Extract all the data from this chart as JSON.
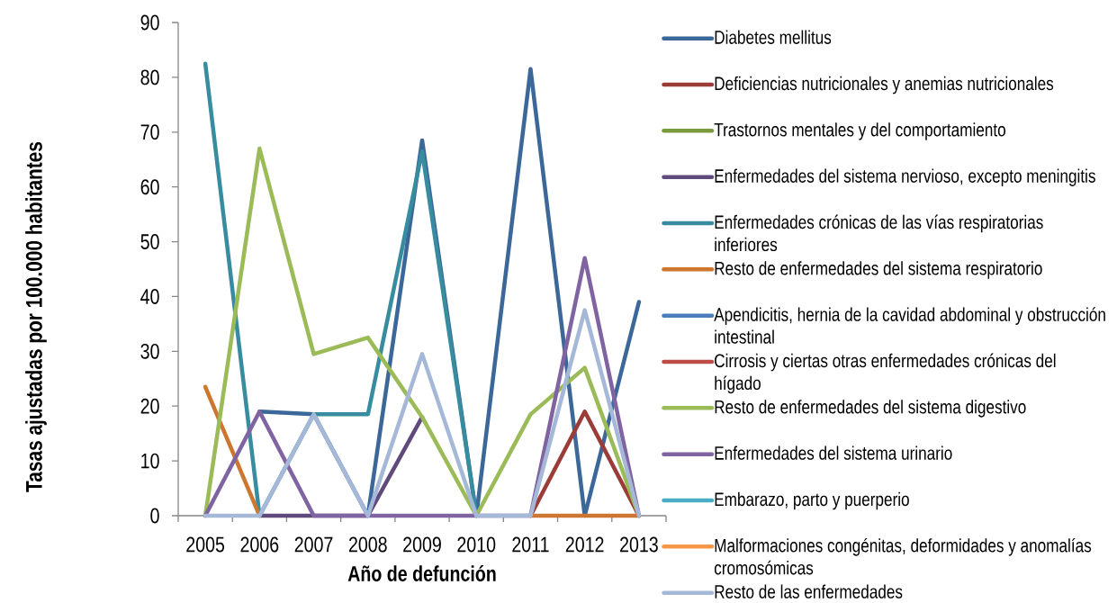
{
  "chart_data": {
    "type": "line",
    "xlabel": "Año de defunción",
    "ylabel": "Tasas ajustadas por 100.000 habitantes",
    "categories": [
      "2005",
      "2006",
      "2007",
      "2008",
      "2009",
      "2010",
      "2011",
      "2012",
      "2013"
    ],
    "ylim": [
      0,
      90
    ],
    "yticks": [
      0,
      10,
      20,
      30,
      40,
      50,
      60,
      70,
      80,
      90
    ],
    "legend": "right",
    "series": [
      {
        "name": "Diabetes mellitus",
        "color": "#3c6799",
        "values": [
          null,
          19,
          18.5,
          0,
          68.5,
          0,
          81.5,
          0,
          39
        ]
      },
      {
        "name": "Deficiencias nutricionales y anemias nutricionales",
        "color": "#9b3c39",
        "values": [
          null,
          null,
          null,
          null,
          null,
          null,
          0,
          19,
          0
        ]
      },
      {
        "name": "Trastornos mentales y del comportamiento",
        "color": "#7b9a3d",
        "values": [
          null,
          null,
          null,
          null,
          null,
          null,
          null,
          null,
          null
        ]
      },
      {
        "name": "Enfermedades del sistema nervioso, excepto meningitis",
        "color": "#604a7b",
        "values": [
          null,
          0,
          0,
          0,
          18,
          null,
          null,
          null,
          null
        ]
      },
      {
        "name": "Enfermedades crónicas de las vías respiratorias inferiores",
        "color": "#378ca0",
        "values": [
          82.5,
          0,
          18.5,
          18.5,
          66.5,
          0,
          null,
          null,
          null
        ]
      },
      {
        "name": "Resto de enfermedades del sistema respiratorio",
        "color": "#cc7630",
        "values": [
          23.5,
          0,
          null,
          null,
          null,
          null,
          0,
          0,
          0
        ]
      },
      {
        "name": "Apendicitis, hernia de la cavidad abdominal y obstrucción intestinal",
        "color": "#4a7ebb",
        "values": [
          null,
          null,
          null,
          null,
          null,
          null,
          null,
          null,
          null
        ]
      },
      {
        "name": "Cirrosis y ciertas otras enfermedades crónicas del hígado",
        "color": "#be4b48",
        "values": [
          null,
          null,
          null,
          null,
          null,
          null,
          null,
          null,
          null
        ]
      },
      {
        "name": "Resto de enfermedades del sistema digestivo",
        "color": "#9bbb59",
        "values": [
          0,
          67,
          29.5,
          32.5,
          18,
          0,
          18.5,
          27,
          0
        ]
      },
      {
        "name": "Enfermedades del sistema urinario",
        "color": "#8064a2",
        "values": [
          0,
          19,
          0,
          0,
          0,
          0,
          0,
          47,
          0
        ]
      },
      {
        "name": "Embarazo, parto y puerperio",
        "color": "#4bacc6",
        "values": [
          null,
          null,
          null,
          null,
          null,
          null,
          null,
          null,
          null
        ]
      },
      {
        "name": "Malformaciones congénitas, deformidades y anomalías cromosómicas",
        "color": "#f79646",
        "values": [
          null,
          null,
          null,
          null,
          null,
          null,
          null,
          null,
          null
        ]
      },
      {
        "name": "Resto de las enfermedades",
        "color": "#a5b8d7",
        "values": [
          0,
          0,
          18.5,
          0,
          29.5,
          0,
          0,
          37.5,
          0
        ]
      }
    ]
  }
}
